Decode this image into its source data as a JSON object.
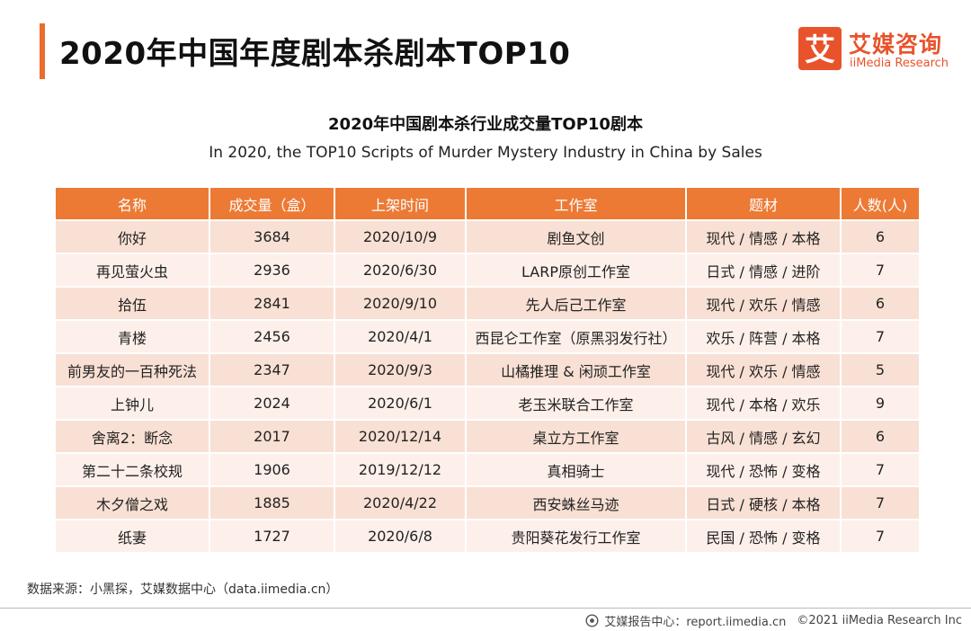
{
  "header": {
    "title": "2020年中国年度剧本杀剧本TOP10",
    "logo_icon_text": "艾",
    "logo_cn": "艾媒咨询",
    "logo_en": "iiMedia Research",
    "accent_color": "#ec6b2d"
  },
  "table": {
    "title_cn": "2020年中国剧本杀行业成交量TOP10剧本",
    "title_en": "In 2020, the TOP10 Scripts of Murder Mystery Industry in China by Sales",
    "columns": [
      "名称",
      "成交量（盒）",
      "上架时间",
      "工作室",
      "题材",
      "人数(人)"
    ],
    "rows": [
      [
        "你好",
        "3684",
        "2020/10/9",
        "剧鱼文创",
        "现代 / 情感 / 本格",
        "6"
      ],
      [
        "再见萤火虫",
        "2936",
        "2020/6/30",
        "LARP原创工作室",
        "日式 / 情感 / 进阶",
        "7"
      ],
      [
        "拾伍",
        "2841",
        "2020/9/10",
        "先人后己工作室",
        "现代 / 欢乐 / 情感",
        "6"
      ],
      [
        "青楼",
        "2456",
        "2020/4/1",
        "西昆仑工作室（原黑羽发行社）",
        "欢乐 / 阵营 / 本格",
        "7"
      ],
      [
        "前男友的一百种死法",
        "2347",
        "2020/9/3",
        "山橘推理 & 闲顽工作室",
        "现代 / 欢乐 / 情感",
        "5"
      ],
      [
        "上钟儿",
        "2024",
        "2020/6/1",
        "老玉米联合工作室",
        "现代 / 本格 / 欢乐",
        "9"
      ],
      [
        "舍离2：断念",
        "2017",
        "2020/12/14",
        "桌立方工作室",
        "古风 / 情感 / 玄幻",
        "6"
      ],
      [
        "第二十二条校规",
        "1906",
        "2019/12/12",
        "真相骑士",
        "现代 / 恐怖 / 变格",
        "7"
      ],
      [
        "木夕僧之戏",
        "1885",
        "2020/4/22",
        "西安蛛丝马迹",
        "日式 / 硬核 / 本格",
        "7"
      ],
      [
        "纸妻",
        "1727",
        "2020/6/8",
        "贵阳葵花发行工作室",
        "民国 / 恐怖 / 变格",
        "7"
      ]
    ]
  },
  "footer": {
    "source": "数据来源：小黑探，艾媒数据中心（data.iimedia.cn）",
    "report_center": "艾媒报告中心：report.iimedia.cn",
    "copyright": "©2021  iiMedia Research  Inc"
  }
}
